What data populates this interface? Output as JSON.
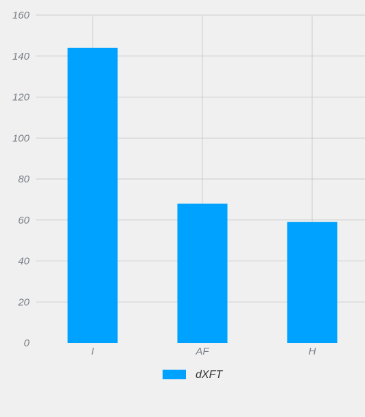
{
  "chart_data": {
    "type": "bar",
    "title": "",
    "xlabel": "",
    "ylabel": "",
    "categories": [
      "I",
      "AF",
      "H"
    ],
    "series": [
      {
        "name": "dXFT",
        "values": [
          144,
          68,
          59
        ],
        "color": "#00a2ff"
      }
    ],
    "ylim": [
      0,
      160
    ],
    "yticks": [
      0,
      20,
      40,
      60,
      80,
      100,
      120,
      140,
      160
    ],
    "grid": true,
    "legend_position": "bottom-center"
  },
  "colors": {
    "background": "#f0f0f0",
    "grid": "#cbcbcb",
    "tick_text": "#7a7f87"
  }
}
